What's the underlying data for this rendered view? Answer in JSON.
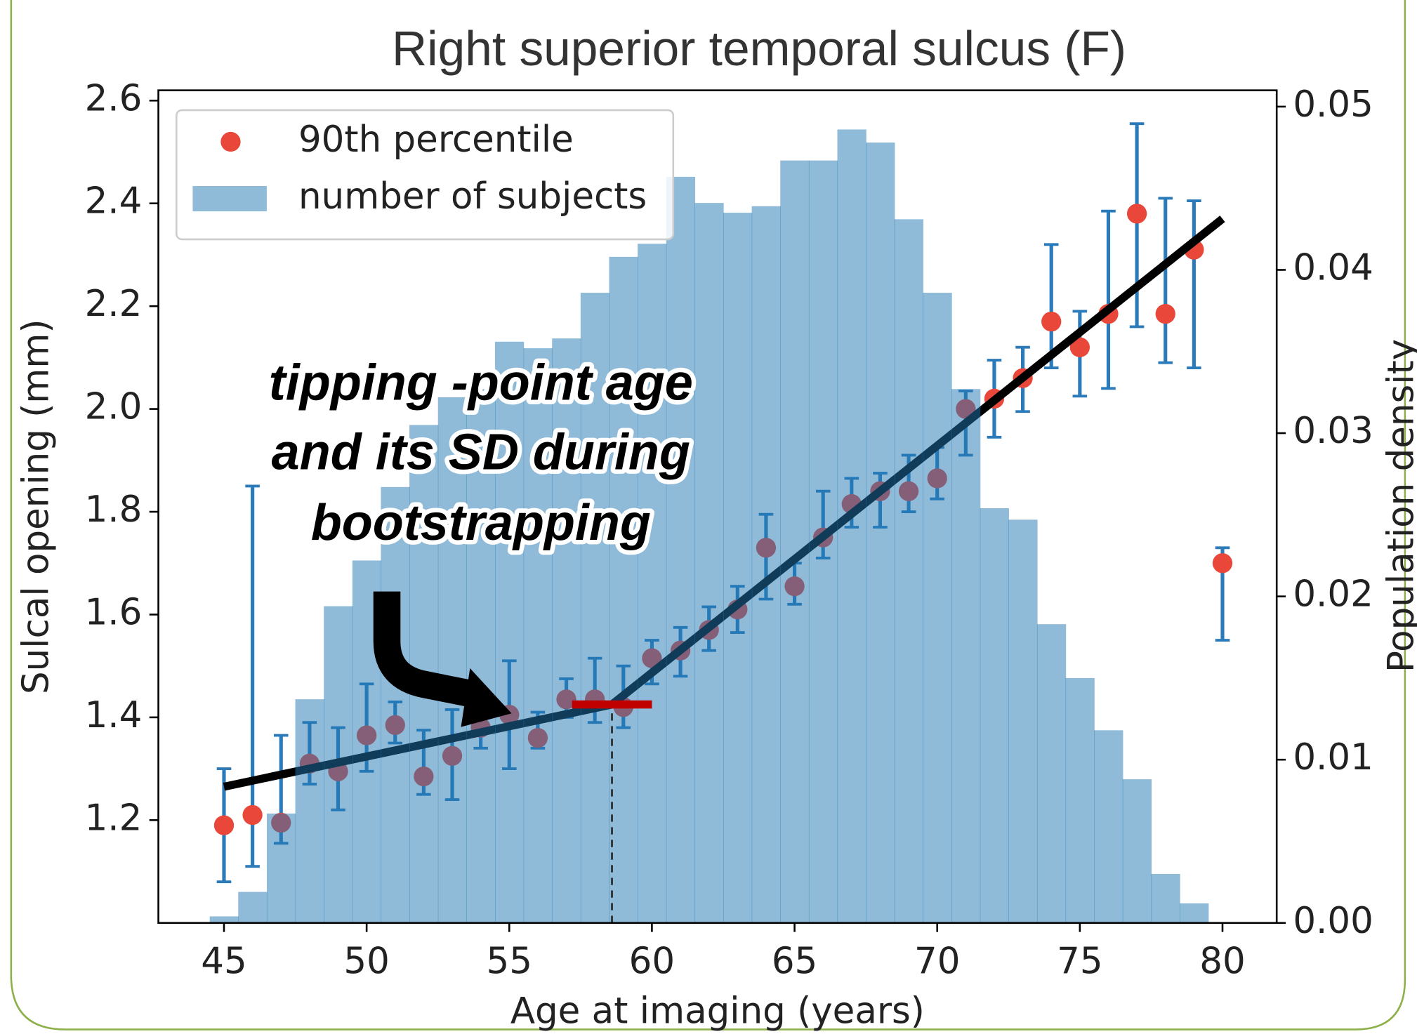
{
  "chart_data": {
    "type": "scatter",
    "title": "Right superior temporal sulcus (F)",
    "x_label": "Age at imaging (years)",
    "y_label": "Sulcal opening (mm)",
    "y2_label": "Population density",
    "xlim": [
      42.7,
      81.9
    ],
    "xticks": [
      45,
      50,
      55,
      60,
      65,
      70,
      75,
      80
    ],
    "ylim": [
      1.0,
      2.62
    ],
    "yticks": [
      1.2,
      1.4,
      1.6,
      1.8,
      {
        "value": 2,
        "label": "2.0"
      },
      2.2,
      2.4,
      2.6
    ],
    "y2lim": [
      0,
      0.051
    ],
    "y2ticks": [
      {
        "value": 0,
        "label": "0.00"
      },
      0.01,
      0.02,
      0.03,
      0.04,
      0.05
    ],
    "legend": "upper left",
    "series": [
      {
        "name": "90th percentile",
        "type": "scatter",
        "color": "#e8473a",
        "error_color": "#2b7bba",
        "x": [
          45,
          46,
          47,
          48,
          49,
          50,
          51,
          52,
          53,
          54,
          55,
          56,
          57,
          58,
          59,
          60,
          61,
          62,
          63,
          64,
          65,
          66,
          67,
          68,
          69,
          70,
          71,
          72,
          73,
          74,
          75,
          76,
          77,
          78,
          79,
          80
        ],
        "values": [
          1.19,
          1.21,
          1.195,
          1.31,
          1.295,
          1.365,
          1.385,
          1.285,
          1.325,
          1.38,
          1.405,
          1.36,
          1.435,
          1.435,
          1.42,
          1.515,
          1.53,
          1.57,
          1.61,
          1.73,
          1.655,
          1.75,
          1.815,
          1.84,
          1.84,
          1.865,
          2.0,
          2.02,
          2.06,
          2.17,
          2.12,
          2.185,
          2.38,
          2.185,
          2.31,
          1.7
        ],
        "err_minus": [
          0.11,
          0.1,
          0.04,
          0.04,
          0.075,
          0.07,
          0.035,
          0.035,
          0.085,
          0.04,
          0.105,
          0.02,
          0.035,
          0.045,
          0.04,
          0.05,
          0.05,
          0.04,
          0.045,
          0.1,
          0.035,
          0.04,
          0.045,
          0.07,
          0.04,
          0.04,
          0.09,
          0.075,
          0.065,
          0.09,
          0.095,
          0.145,
          0.22,
          0.095,
          0.23,
          0.15
        ],
        "err_plus": [
          0.11,
          0.64,
          0.17,
          0.08,
          0.085,
          0.1,
          0.045,
          0.09,
          0.09,
          0.055,
          0.105,
          0.05,
          0.04,
          0.08,
          0.08,
          0.035,
          0.045,
          0.045,
          0.045,
          0.065,
          0.045,
          0.09,
          0.05,
          0.035,
          0.07,
          0.06,
          0.035,
          0.075,
          0.06,
          0.15,
          0.07,
          0.2,
          0.175,
          0.225,
          0.095,
          0.03
        ]
      },
      {
        "name": "number of subjects",
        "type": "hist",
        "axis": "y2",
        "color": "#1f77b4",
        "bins": [
          44.5,
          45.5,
          46.5,
          47.5,
          48.5,
          49.5,
          50.5,
          51.5,
          52.5,
          53.5,
          54.5,
          55.5,
          56.5,
          57.5,
          58.5,
          59.5,
          60.5,
          61.5,
          62.5,
          63.5,
          64.5,
          65.5,
          66.5,
          67.5,
          68.5,
          69.5,
          70.5,
          71.5,
          72.5,
          73.5,
          74.5,
          75.5,
          76.5,
          77.5,
          78.5,
          79.5
        ],
        "values": [
          0.0004,
          0.0019,
          0.0067,
          0.0137,
          0.0194,
          0.0222,
          0.0267,
          0.0305,
          0.0322,
          0.0327,
          0.0356,
          0.0352,
          0.0358,
          0.0386,
          0.0408,
          0.0416,
          0.0457,
          0.0441,
          0.0435,
          0.0439,
          0.0467,
          0.0467,
          0.0486,
          0.0478,
          0.0431,
          0.0386,
          0.0327,
          0.0254,
          0.0247,
          0.0183,
          0.015,
          0.0118,
          0.0088,
          0.003,
          0.0012
        ]
      }
    ],
    "fit": {
      "color": "#000000",
      "x": [
        45,
        58.6,
        80
      ],
      "values": [
        1.265,
        1.425,
        2.37
      ]
    },
    "tipping_point": {
      "age": 58.6,
      "sd": 1.4,
      "value": 1.425,
      "color": "#c00000"
    },
    "annotation": [
      "tipping -point age",
      "and its SD during",
      "bootstrapping"
    ]
  }
}
